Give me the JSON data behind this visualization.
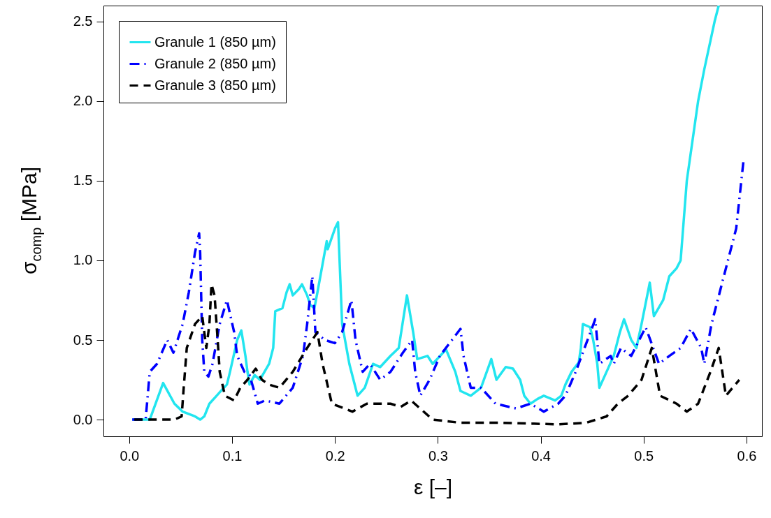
{
  "chart_data": {
    "type": "line",
    "xlabel": "ε [–]",
    "ylabel": "σ$_{comp}$ [MPa]",
    "xlim": [
      -0.025,
      0.615
    ],
    "ylim": [
      -0.105,
      2.6
    ],
    "xticks": [
      {
        "value": 0,
        "label": "0.0"
      },
      0.1,
      0.2,
      0.3,
      0.4,
      0.5,
      0.6
    ],
    "yticks": [
      {
        "value": 0,
        "label": "0.0"
      },
      0.5,
      {
        "value": 1,
        "label": "1.0"
      },
      1.5,
      {
        "value": 2,
        "label": "2.0"
      },
      2.5
    ],
    "grid": false,
    "legend": "top left",
    "marker": "none",
    "series": [
      {
        "name": "Granule 1 (850 µm)",
        "color": "#22e5ef",
        "line_style": "solid",
        "x": [
          0.003,
          0.02,
          0.033,
          0.044,
          0.052,
          0.064,
          0.069,
          0.073,
          0.078,
          0.085,
          0.092,
          0.095,
          0.098,
          0.105,
          0.109,
          0.113,
          0.115,
          0.117,
          0.122,
          0.127,
          0.136,
          0.14,
          0.142,
          0.149,
          0.153,
          0.156,
          0.159,
          0.165,
          0.168,
          0.173,
          0.176,
          0.18,
          0.183,
          0.192,
          0.193,
          0.2,
          0.203,
          0.207,
          0.214,
          0.222,
          0.229,
          0.237,
          0.244,
          0.254,
          0.262,
          0.27,
          0.276,
          0.28,
          0.29,
          0.295,
          0.308,
          0.317,
          0.322,
          0.332,
          0.342,
          0.352,
          0.357,
          0.366,
          0.373,
          0.38,
          0.384,
          0.39,
          0.397,
          0.403,
          0.414,
          0.42,
          0.424,
          0.43,
          0.437,
          0.439,
          0.441,
          0.448,
          0.451,
          0.455,
          0.457,
          0.464,
          0.471,
          0.477,
          0.481,
          0.488,
          0.493,
          0.498,
          0.506,
          0.51,
          0.519,
          0.525,
          0.532,
          0.536,
          0.542,
          0.553,
          0.559,
          0.569,
          0.573
        ],
        "values": [
          0,
          0,
          0.23,
          0.1,
          0.05,
          0.02,
          0,
          0.02,
          0.1,
          0.15,
          0.2,
          0.22,
          0.3,
          0.5,
          0.56,
          0.4,
          0.3,
          0.22,
          0.28,
          0.25,
          0.35,
          0.45,
          0.68,
          0.7,
          0.8,
          0.85,
          0.78,
          0.82,
          0.85,
          0.78,
          0.72,
          0.7,
          0.8,
          1.12,
          1.07,
          1.2,
          1.24,
          0.6,
          0.35,
          0.15,
          0.2,
          0.35,
          0.33,
          0.4,
          0.45,
          0.78,
          0.55,
          0.38,
          0.4,
          0.35,
          0.44,
          0.3,
          0.18,
          0.15,
          0.2,
          0.38,
          0.25,
          0.33,
          0.32,
          0.25,
          0.15,
          0.1,
          0.13,
          0.15,
          0.12,
          0.15,
          0.22,
          0.3,
          0.36,
          0.45,
          0.6,
          0.58,
          0.5,
          0.35,
          0.2,
          0.3,
          0.4,
          0.55,
          0.63,
          0.5,
          0.45,
          0.6,
          0.86,
          0.65,
          0.75,
          0.9,
          0.95,
          1.0,
          1.5,
          2.0,
          2.2,
          2.5,
          2.6
        ]
      },
      {
        "name": "Granule 2 (850 µm)",
        "color": "#0000ff",
        "line_style": "dashdot",
        "x": [
          0.003,
          0.016,
          0.02,
          0.027,
          0.037,
          0.043,
          0.047,
          0.052,
          0.058,
          0.064,
          0.068,
          0.069,
          0.071,
          0.073,
          0.077,
          0.081,
          0.088,
          0.095,
          0.102,
          0.105,
          0.112,
          0.117,
          0.125,
          0.132,
          0.146,
          0.159,
          0.169,
          0.173,
          0.178,
          0.181,
          0.19,
          0.2,
          0.207,
          0.216,
          0.22,
          0.227,
          0.234,
          0.244,
          0.254,
          0.266,
          0.275,
          0.278,
          0.283,
          0.292,
          0.302,
          0.322,
          0.325,
          0.332,
          0.342,
          0.356,
          0.376,
          0.39,
          0.403,
          0.417,
          0.424,
          0.434,
          0.453,
          0.457,
          0.468,
          0.471,
          0.478,
          0.488,
          0.502,
          0.515,
          0.525,
          0.536,
          0.546,
          0.556,
          0.559,
          0.566,
          0.58,
          0.59,
          0.597
        ],
        "values": [
          0,
          0,
          0.3,
          0.35,
          0.5,
          0.42,
          0.5,
          0.6,
          0.8,
          1.05,
          1.17,
          1.05,
          0.5,
          0.3,
          0.27,
          0.35,
          0.6,
          0.75,
          0.55,
          0.4,
          0.3,
          0.28,
          0.1,
          0.12,
          0.1,
          0.2,
          0.4,
          0.6,
          0.9,
          0.55,
          0.5,
          0.48,
          0.55,
          0.75,
          0.5,
          0.3,
          0.35,
          0.25,
          0.3,
          0.42,
          0.5,
          0.3,
          0.15,
          0.25,
          0.4,
          0.57,
          0.4,
          0.2,
          0.2,
          0.1,
          0.07,
          0.1,
          0.05,
          0.1,
          0.15,
          0.3,
          0.63,
          0.35,
          0.4,
          0.35,
          0.45,
          0.4,
          0.58,
          0.35,
          0.4,
          0.45,
          0.57,
          0.45,
          0.35,
          0.6,
          0.95,
          1.2,
          1.62
        ]
      },
      {
        "name": "Granule 3 (850 µm)",
        "color": "#000000",
        "line_style": "dashed",
        "x": [
          0.005,
          0.044,
          0.051,
          0.053,
          0.056,
          0.064,
          0.071,
          0.075,
          0.078,
          0.08,
          0.083,
          0.086,
          0.088,
          0.093,
          0.102,
          0.108,
          0.115,
          0.123,
          0.129,
          0.136,
          0.146,
          0.159,
          0.173,
          0.183,
          0.188,
          0.197,
          0.217,
          0.231,
          0.254,
          0.264,
          0.274,
          0.295,
          0.322,
          0.363,
          0.417,
          0.444,
          0.454,
          0.464,
          0.475,
          0.485,
          0.498,
          0.508,
          0.516,
          0.532,
          0.542,
          0.553,
          0.565,
          0.573,
          0.58,
          0.593
        ],
        "values": [
          0,
          0,
          0.02,
          0.2,
          0.45,
          0.6,
          0.65,
          0.45,
          0.6,
          0.85,
          0.78,
          0.5,
          0.3,
          0.15,
          0.12,
          0.2,
          0.25,
          0.32,
          0.25,
          0.22,
          0.2,
          0.3,
          0.45,
          0.55,
          0.35,
          0.1,
          0.05,
          0.1,
          0.1,
          0.08,
          0.12,
          0,
          -0.02,
          -0.02,
          -0.03,
          -0.02,
          0,
          0.02,
          0.1,
          0.15,
          0.25,
          0.45,
          0.15,
          0.1,
          0.05,
          0.1,
          0.3,
          0.45,
          0.15,
          0.25
        ]
      }
    ]
  }
}
